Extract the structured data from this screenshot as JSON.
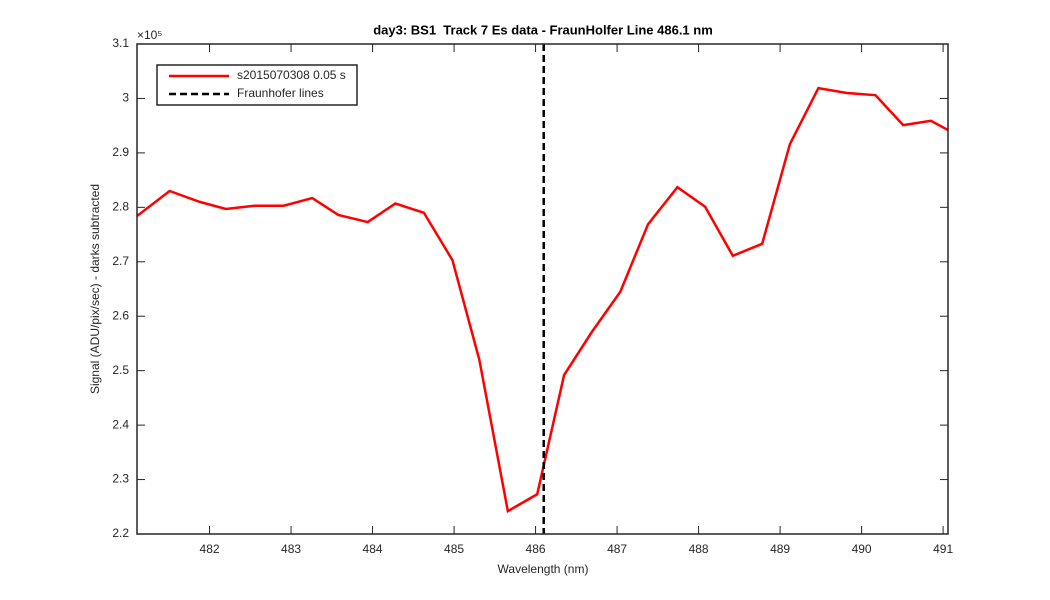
{
  "chart_data": {
    "type": "line",
    "title": "day3: BS1  Track 7 Es data - FraunHolfer Line 486.1 nm",
    "x_label": "Wavelength (nm)",
    "y_label": "Signal (ADU/pix/sec) - darks subtracted",
    "y_exponent": "×10⁵",
    "x": [
      481.11,
      481.51,
      481.88,
      482.2,
      482.55,
      482.91,
      483.26,
      483.58,
      483.94,
      484.28,
      484.63,
      484.98,
      485.31,
      485.66,
      486.02,
      486.35,
      486.69,
      487.04,
      487.38,
      487.74,
      488.08,
      488.42,
      488.78,
      489.12,
      489.47,
      489.82,
      490.17,
      490.51,
      490.85,
      491.06
    ],
    "series": [
      {
        "name": "s2015070308 0.05 s",
        "color": "#ff0000",
        "values": [
          2.784,
          2.83,
          2.81,
          2.797,
          2.803,
          2.803,
          2.817,
          2.786,
          2.773,
          2.807,
          2.79,
          2.703,
          2.52,
          2.242,
          2.273,
          2.492,
          2.571,
          2.645,
          2.769,
          2.837,
          2.801,
          2.711,
          2.733,
          2.916,
          3.019,
          3.01,
          3.006,
          2.951,
          2.959,
          2.942
        ]
      }
    ],
    "reference_lines": {
      "name": "Fraunhofer lines",
      "color": "#000000",
      "x": [
        486.1
      ]
    },
    "xlim": [
      481.11,
      491.06
    ],
    "ylim": [
      2.2,
      3.1
    ],
    "xticks": [
      482,
      483,
      484,
      485,
      486,
      487,
      488,
      489,
      490,
      491
    ],
    "yticks": [
      2.2,
      2.3,
      2.4,
      2.5,
      2.6,
      2.7,
      2.8,
      2.9,
      3,
      3.1
    ],
    "legend": "upper left",
    "grid": false
  }
}
